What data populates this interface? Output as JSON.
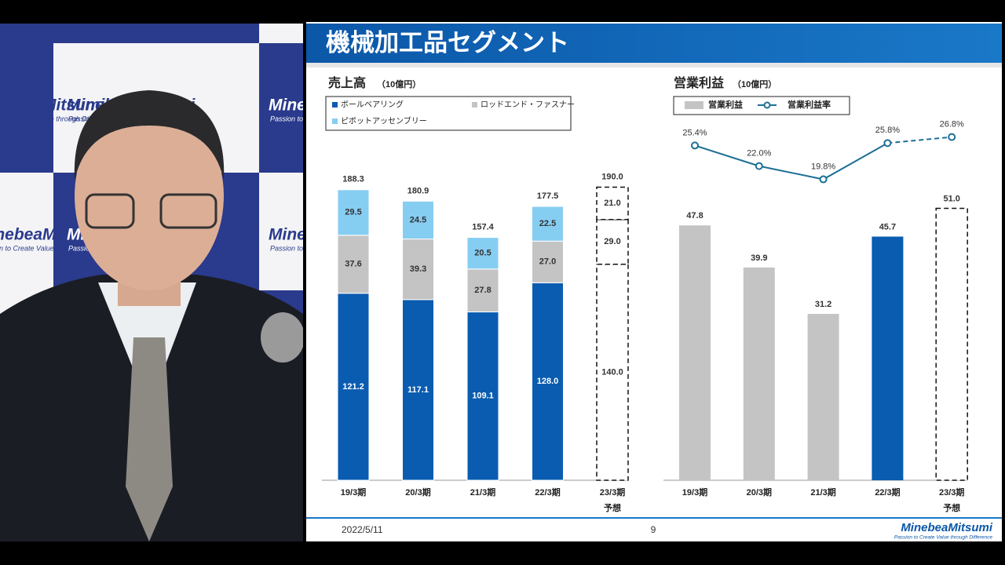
{
  "slide": {
    "title": "機械加工品セグメント",
    "date": "2022/5/11",
    "page": "9",
    "logo": "MinebeaMitsumi",
    "tagline": "Passion to Create Value through Difference"
  },
  "chart_data": [
    {
      "type": "bar",
      "stacked": true,
      "title": "売上高",
      "unit": "（10億円）",
      "categories": [
        "19/3期",
        "20/3期",
        "21/3期",
        "22/3期",
        "23/3期"
      ],
      "category_notes": [
        null,
        null,
        null,
        null,
        "予想"
      ],
      "forecast": [
        false,
        false,
        false,
        false,
        true
      ],
      "series": [
        {
          "name": "ボールベアリング",
          "color": "#0a5cb0",
          "values": [
            121.2,
            117.1,
            109.1,
            128.0,
            140.0
          ],
          "value_labels": [
            "121.2",
            "117.1",
            "109.1",
            "128.0",
            "140.0"
          ]
        },
        {
          "name": "ロッドエンド・ファスナー",
          "color": "#c4c4c4",
          "values": [
            37.6,
            39.3,
            27.8,
            27.0,
            29.0
          ],
          "value_labels": [
            "37.6",
            "39.3",
            "27.8",
            "27.0",
            "29.0"
          ]
        },
        {
          "name": "ピボットアッセンブリー",
          "color": "#86cdf2",
          "values": [
            29.5,
            24.5,
            20.5,
            22.5,
            21.0
          ],
          "value_labels": [
            "29.5",
            "24.5",
            "20.5",
            "22.5",
            "21.0"
          ]
        }
      ],
      "totals": [
        188.3,
        180.9,
        157.4,
        177.5,
        190.0
      ],
      "total_labels": [
        "188.3",
        "180.9",
        "157.4",
        "177.5",
        "190.0"
      ],
      "ylim": [
        0,
        235
      ]
    },
    {
      "type": "bar",
      "title": "営業利益",
      "unit": "（10億円）",
      "categories": [
        "19/3期",
        "20/3期",
        "21/3期",
        "22/3期",
        "23/3期"
      ],
      "category_notes": [
        null,
        null,
        null,
        null,
        "予想"
      ],
      "forecast": [
        false,
        false,
        false,
        false,
        true
      ],
      "series": [
        {
          "name": "営業利益",
          "color": "#c4c4c4",
          "bar_colors": [
            "#c4c4c4",
            "#c4c4c4",
            "#c4c4c4",
            "#0a5cb0",
            "#ffffff"
          ],
          "values": [
            47.8,
            39.9,
            31.2,
            45.7,
            51.0
          ],
          "value_labels": [
            "47.8",
            "39.9",
            "31.2",
            "45.7",
            "51.0"
          ]
        },
        {
          "name": "営業利益率",
          "type": "line",
          "axis": "y2",
          "color": "#1d6f96",
          "values": [
            25.4,
            22.0,
            19.8,
            25.8,
            26.8
          ],
          "value_labels": [
            "25.4%",
            "22.0%",
            "19.8%",
            "25.8%",
            "26.8%"
          ]
        }
      ],
      "ylim": [
        0,
        68
      ],
      "y2lim": [
        -30,
        30
      ]
    }
  ],
  "backdrop": {
    "logo": "MinebeaMitsumi",
    "tagline": "Passion to Create Value through Difference"
  }
}
